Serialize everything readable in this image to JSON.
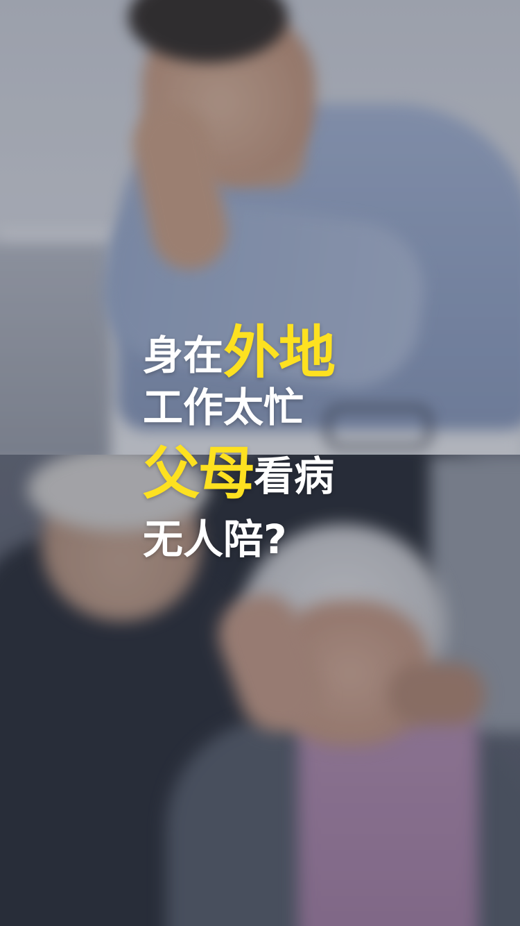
{
  "headline": {
    "line1": {
      "prefix": "身在",
      "highlight": "外地"
    },
    "line2": {
      "text": "工作太忙"
    },
    "line3": {
      "highlight": "父母",
      "suffix": "看病"
    },
    "line4": {
      "text": "无人陪?"
    }
  },
  "colors": {
    "highlight": "#fde120",
    "text": "#ffffff"
  }
}
